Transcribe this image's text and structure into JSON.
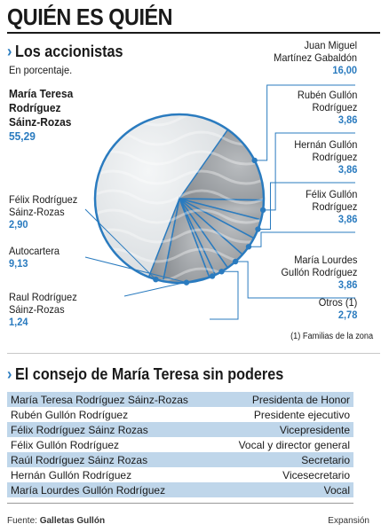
{
  "title": "QUIÉN ES QUIÉN",
  "section1": {
    "heading": "Los accionistas",
    "subtitle": "En porcentaje."
  },
  "section2": {
    "heading": "El consejo de María Teresa sin poderes"
  },
  "chart_data": {
    "type": "pie",
    "title": "Los accionistas",
    "subtitle": "En porcentaje.",
    "slices": [
      {
        "label": "María Teresa Rodríguez Sáinz-Rozas",
        "value": 55.29,
        "display": "55,29"
      },
      {
        "label": "Juan Miguel Martínez Gabaldón",
        "value": 16.0,
        "display": "16,00"
      },
      {
        "label": "Rubén Gullón Rodríguez",
        "value": 3.86,
        "display": "3,86"
      },
      {
        "label": "Hernán Gullón Rodríguez",
        "value": 3.86,
        "display": "3,86"
      },
      {
        "label": "Félix Gullón Rodríguez",
        "value": 3.86,
        "display": "3,86"
      },
      {
        "label": "María Lourdes Gullón Rodríguez",
        "value": 3.86,
        "display": "3,86"
      },
      {
        "label": "Otros (1)",
        "value": 2.78,
        "display": "2,78"
      },
      {
        "label": "Raul Rodríguez Sáinz-Rozas",
        "value": 1.24,
        "display": "1,24"
      },
      {
        "label": "Autocartera",
        "value": 9.13,
        "display": "9,13"
      },
      {
        "label": "Félix Rodríguez Sáinz-Rozas",
        "value": 2.9,
        "display": "2,90"
      }
    ],
    "footnote": "(1) Familias de la zona"
  },
  "labels": {
    "maria_teresa": [
      "María Teresa",
      "Rodríguez",
      "Sáinz-Rozas"
    ],
    "felix_rs": [
      "Félix Rodríguez",
      "Sáinz-Rozas"
    ],
    "autocartera": [
      "Autocartera"
    ],
    "raul": [
      "Raul Rodríguez",
      "Sáinz-Rozas"
    ],
    "juan": [
      "Juan Miguel",
      "Martínez Gabaldón"
    ],
    "ruben": [
      "Rubén Gullón",
      "Rodríguez"
    ],
    "hernan": [
      "Hernán Gullón",
      "Rodríguez"
    ],
    "felix_g": [
      "Félix Gullón",
      "Rodríguez"
    ],
    "lourdes": [
      "María Lourdes",
      "Gullón Rodríguez"
    ],
    "otros": [
      "Otros (1)"
    ]
  },
  "board": [
    {
      "name": "María Teresa Rodríguez Sáinz-Rozas",
      "role": "Presidenta de Honor"
    },
    {
      "name": "Rubén Gullón Rodríguez",
      "role": "Presidente ejecutivo"
    },
    {
      "name": "Félix Rodríguez Sáinz Rozas",
      "role": "Vicepresidente"
    },
    {
      "name": "Félix Gullón Rodríguez",
      "role": "Vocal y director general"
    },
    {
      "name": "Raúl Rodríguez Sáinz Rozas",
      "role": "Secretario"
    },
    {
      "name": "Hernán Gullón Rodríguez",
      "role": "Vicesecretario"
    },
    {
      "name": "María Lourdes Gullón Rodríguez",
      "role": "Vocal"
    }
  ],
  "footer": {
    "source_label": "Fuente:",
    "source": "Galletas Gullón",
    "publisher": "Expansión"
  },
  "colors": {
    "accent": "#2a7bbf",
    "row_shade": "#bfd6ea",
    "cookie_light": "#e9ecee",
    "cookie_dark": "#9ea2a6"
  }
}
